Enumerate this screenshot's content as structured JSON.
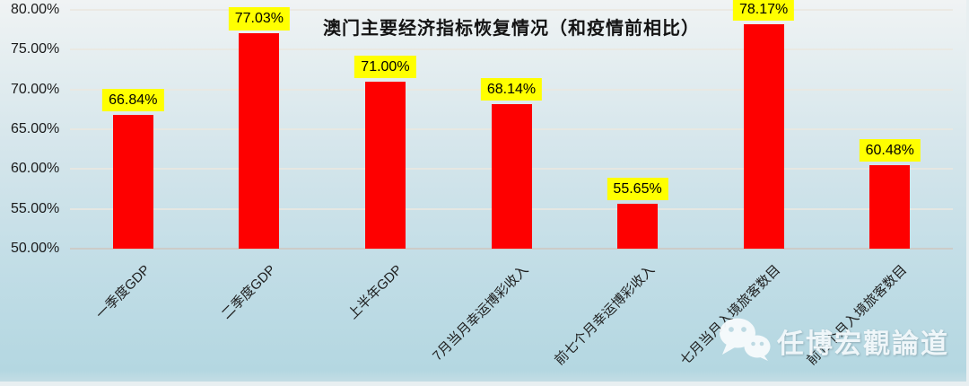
{
  "chart_data": {
    "type": "bar",
    "title": "澳门主要经济指标恢复情况（和疫情前相比）",
    "categories": [
      "一季度GDP",
      "二季度GDP",
      "上半年GDP",
      "7月当月幸运博彩收入",
      "前七个月幸运博彩收入",
      "七月当月入境旅客数目",
      "前七个月入境旅客数目"
    ],
    "values": [
      66.84,
      77.03,
      71.0,
      68.14,
      55.65,
      78.17,
      60.48
    ],
    "value_labels": [
      "66.84%",
      "77.03%",
      "71.00%",
      "68.14%",
      "55.65%",
      "78.17%",
      "60.48%"
    ],
    "xlabel": "",
    "ylabel": "",
    "ylim": [
      50,
      80
    ],
    "ytick_values": [
      80,
      75,
      70,
      65,
      60,
      55,
      50
    ],
    "ytick_labels": [
      "80.00%",
      "75.00%",
      "70.00%",
      "65.00%",
      "60.00%",
      "55.00%",
      "50.00%"
    ],
    "grid": true,
    "legend": "none",
    "bar_color": "#fe0000",
    "value_label_bg": "#ffff00",
    "value_label_color": "#000000"
  },
  "watermark": {
    "icon": "wechat-icon",
    "text": "任博宏觀論道"
  }
}
